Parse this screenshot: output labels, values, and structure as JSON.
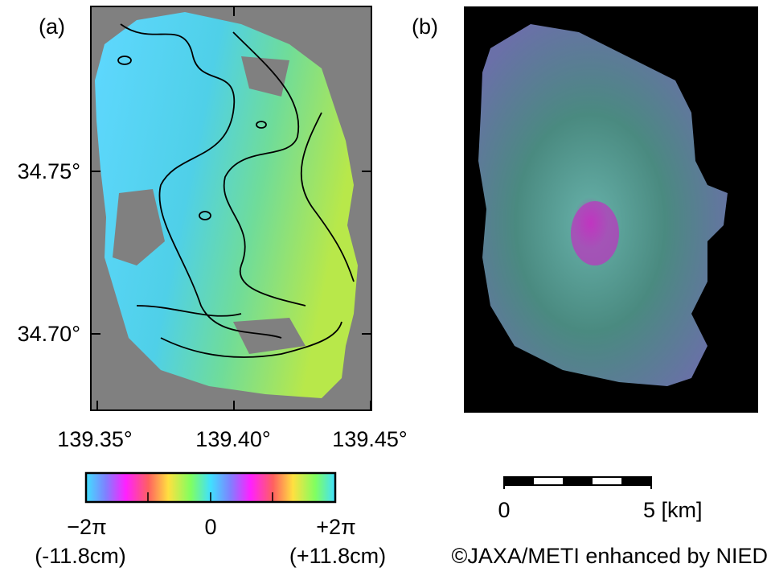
{
  "panels": [
    {
      "label": "(a)"
    },
    {
      "label": "(b)"
    }
  ],
  "axes": {
    "y_tick_labels": [
      "34.75°",
      "34.70°"
    ],
    "x_tick_labels": [
      "139.35°",
      "139.40°",
      "139.45°"
    ]
  },
  "colorbar": {
    "left_label": "−2π",
    "center_label": "0",
    "right_label": "+2π",
    "left_unit": "(-11.8cm)",
    "right_unit": "(+11.8cm)"
  },
  "scale_bar": {
    "start_label": "0",
    "end_label": "5 [km]"
  },
  "credit": "©JAXA/METI enhanced by NIED"
}
